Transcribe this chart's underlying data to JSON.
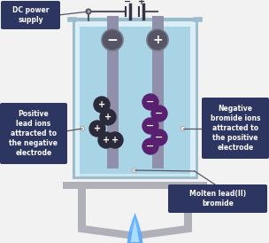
{
  "bg_color": "#f2f2f2",
  "beaker_glass_outer": "#cce6f0",
  "beaker_glass_inner": "#daeef6",
  "liquid_fill": "#a8d4e6",
  "liquid_fill2": "#b8dce8",
  "electrode_shaft": "#9090aa",
  "electrode_cap": "#555566",
  "electrode_rim": "#777788",
  "label_box_color": "#2d3561",
  "label_text_color": "#ffffff",
  "positive_ion_color": "#2a2a3a",
  "negative_ion_color": "#5a2070",
  "stand_color": "#b0b0b8",
  "stand_dark": "#9898a8",
  "flame_outer": "#55aaff",
  "flame_inner": "#aaddff",
  "wire_color": "#555566",
  "title": "DC power\nsupply",
  "left_label": "Positive\nlead ions\nattracted to\nthe negative\nelectrode",
  "right_label": "Negative\nbromide ions\nattracted to\nthe positive\nelectrode",
  "bottom_label": "Molten lead(II)\nbromide",
  "figsize": [
    3.04,
    2.74
  ],
  "dpi": 100
}
